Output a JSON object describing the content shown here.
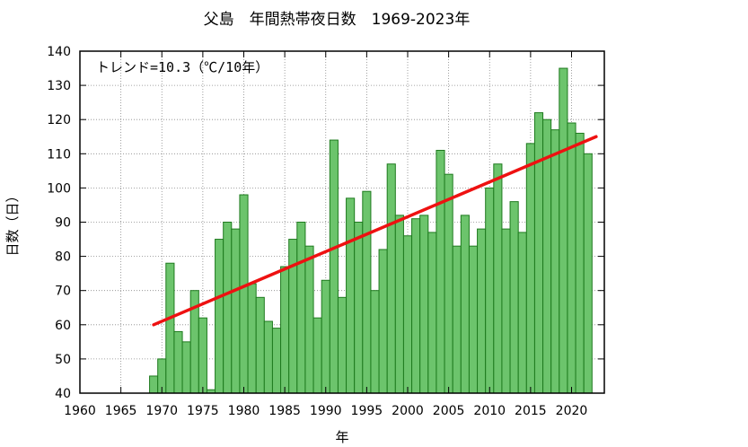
{
  "chart_data": {
    "type": "bar",
    "title": "父島　年間熱帯夜日数　1969-2023年",
    "xlabel": "年",
    "ylabel": "日数（日）",
    "annotation": "トレンド=10.3（℃/10年）",
    "xlim": [
      1960,
      2024
    ],
    "ylim": [
      40,
      140
    ],
    "x_ticks": [
      1960,
      1965,
      1970,
      1975,
      1980,
      1985,
      1990,
      1995,
      2000,
      2005,
      2010,
      2015,
      2020
    ],
    "y_ticks": [
      40,
      50,
      60,
      70,
      80,
      90,
      100,
      110,
      120,
      130,
      140
    ],
    "grid": true,
    "x": [
      1969,
      1970,
      1971,
      1972,
      1973,
      1974,
      1975,
      1976,
      1977,
      1978,
      1979,
      1980,
      1981,
      1982,
      1983,
      1984,
      1985,
      1986,
      1987,
      1988,
      1989,
      1990,
      1991,
      1992,
      1993,
      1994,
      1995,
      1996,
      1997,
      1998,
      1999,
      2000,
      2001,
      2002,
      2003,
      2004,
      2005,
      2006,
      2007,
      2008,
      2009,
      2010,
      2011,
      2012,
      2013,
      2014,
      2015,
      2016,
      2017,
      2018,
      2019,
      2020,
      2021,
      2022,
      2023
    ],
    "values": [
      45,
      50,
      78,
      58,
      55,
      70,
      62,
      41,
      85,
      90,
      88,
      98,
      72,
      68,
      61,
      59,
      77,
      85,
      90,
      83,
      62,
      73,
      114,
      68,
      97,
      90,
      99,
      70,
      82,
      107,
      92,
      86,
      91,
      92,
      87,
      111,
      104,
      83,
      92,
      83,
      88,
      100,
      107,
      88,
      96,
      87,
      113,
      122,
      120,
      117,
      135,
      119,
      116,
      110,
      null
    ],
    "trend": {
      "x": [
        1969,
        2023
      ],
      "y": [
        60,
        115
      ]
    },
    "colors": {
      "bar_fill": "#6cc46c",
      "bar_stroke": "#1e7a1e",
      "trend": "#ee1111",
      "grid": "#888888"
    }
  }
}
